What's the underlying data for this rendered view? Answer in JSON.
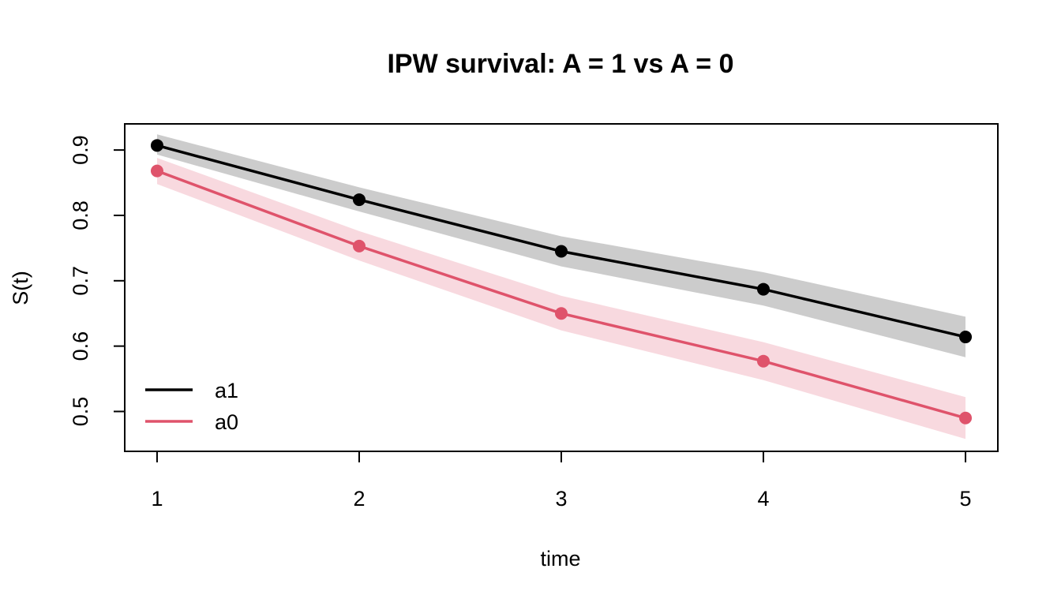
{
  "chart_data": {
    "type": "line",
    "title": "IPW survival: A = 1 vs A = 0",
    "xlabel": "time",
    "ylabel": "S(t)",
    "x": [
      1,
      2,
      3,
      4,
      5
    ],
    "x_ticks": [
      "1",
      "2",
      "3",
      "4",
      "5"
    ],
    "y_ticks": [
      "0.5",
      "0.6",
      "0.7",
      "0.8",
      "0.9"
    ],
    "xlim": [
      0.84,
      5.16
    ],
    "ylim": [
      0.439,
      0.94
    ],
    "grid": false,
    "legend_position": "bottom-left",
    "series": [
      {
        "name": "a1",
        "color": "#000000",
        "band_color": "#cccccc",
        "values": [
          0.907,
          0.824,
          0.745,
          0.687,
          0.614
        ],
        "lower": [
          0.893,
          0.806,
          0.722,
          0.662,
          0.583
        ],
        "upper": [
          0.924,
          0.843,
          0.768,
          0.713,
          0.645
        ]
      },
      {
        "name": "a0",
        "color": "#df536b",
        "band_color": "#f8d9df",
        "values": [
          0.868,
          0.753,
          0.65,
          0.577,
          0.49
        ],
        "lower": [
          0.848,
          0.731,
          0.624,
          0.548,
          0.458
        ],
        "upper": [
          0.888,
          0.776,
          0.677,
          0.606,
          0.522
        ]
      }
    ]
  }
}
